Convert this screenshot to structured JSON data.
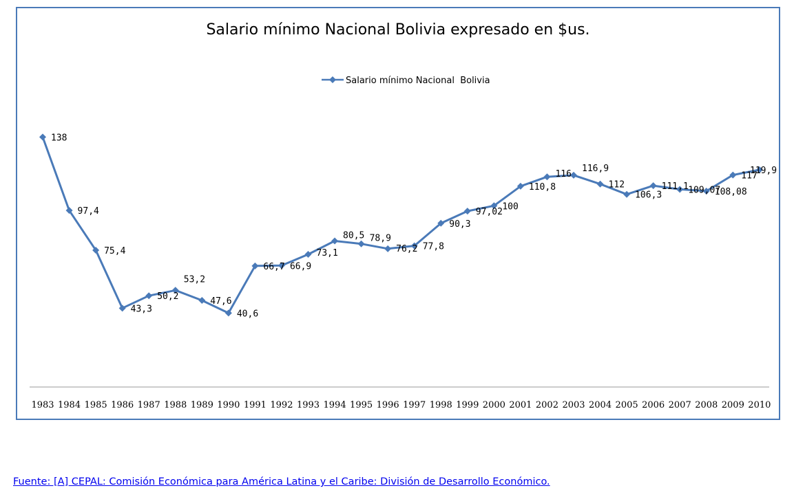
{
  "chart_data": {
    "type": "line",
    "title": "Salario mínimo Nacional  Bolivia expresado en $us.",
    "xlabel": "",
    "ylabel": "",
    "legend_position": "top-center",
    "grid": false,
    "y_axis_visible": false,
    "ylim": [
      0,
      150
    ],
    "categories": [
      "1983",
      "1984",
      "1985",
      "1986",
      "1987",
      "1988",
      "1989",
      "1990",
      "1991",
      "1992",
      "1993",
      "1994",
      "1995",
      "1996",
      "1997",
      "1998",
      "1999",
      "2000",
      "2001",
      "2002",
      "2003",
      "2004",
      "2005",
      "2006",
      "2007",
      "2008",
      "2009",
      "2010"
    ],
    "series": [
      {
        "name": "Salario mínimo Nacional  Bolivia",
        "color": "#4a7ab8",
        "values": [
          138,
          97.4,
          75.4,
          43.3,
          50.2,
          53.2,
          47.6,
          40.6,
          66.7,
          66.9,
          73.1,
          80.5,
          78.9,
          76.2,
          77.8,
          90.3,
          97.02,
          100,
          110.8,
          116,
          116.9,
          112,
          106.3,
          111.1,
          109.07,
          108.08,
          117,
          119.9
        ],
        "data_labels": [
          "138",
          "97,4",
          "75,4",
          "43,3",
          "50,2",
          "53,2",
          "47,6",
          "40,6",
          "66,7",
          "66,9",
          "73,1",
          "80,5",
          "78,9",
          "76,2",
          "77,8",
          "90,3",
          "97,02",
          "100",
          "110,8",
          "116",
          "116,9",
          "112",
          "106,3",
          "111,1",
          "109,07",
          "108,08",
          "117",
          "119,9"
        ]
      }
    ]
  },
  "source": {
    "text": "Fuente: [A] CEPAL: Comisión Económica para América Latina y el Caribe: División de Desarrollo Económico."
  },
  "colors": {
    "frame_border": "#4a7ab8",
    "axis_line": "#999999",
    "link": "#0000ee"
  }
}
